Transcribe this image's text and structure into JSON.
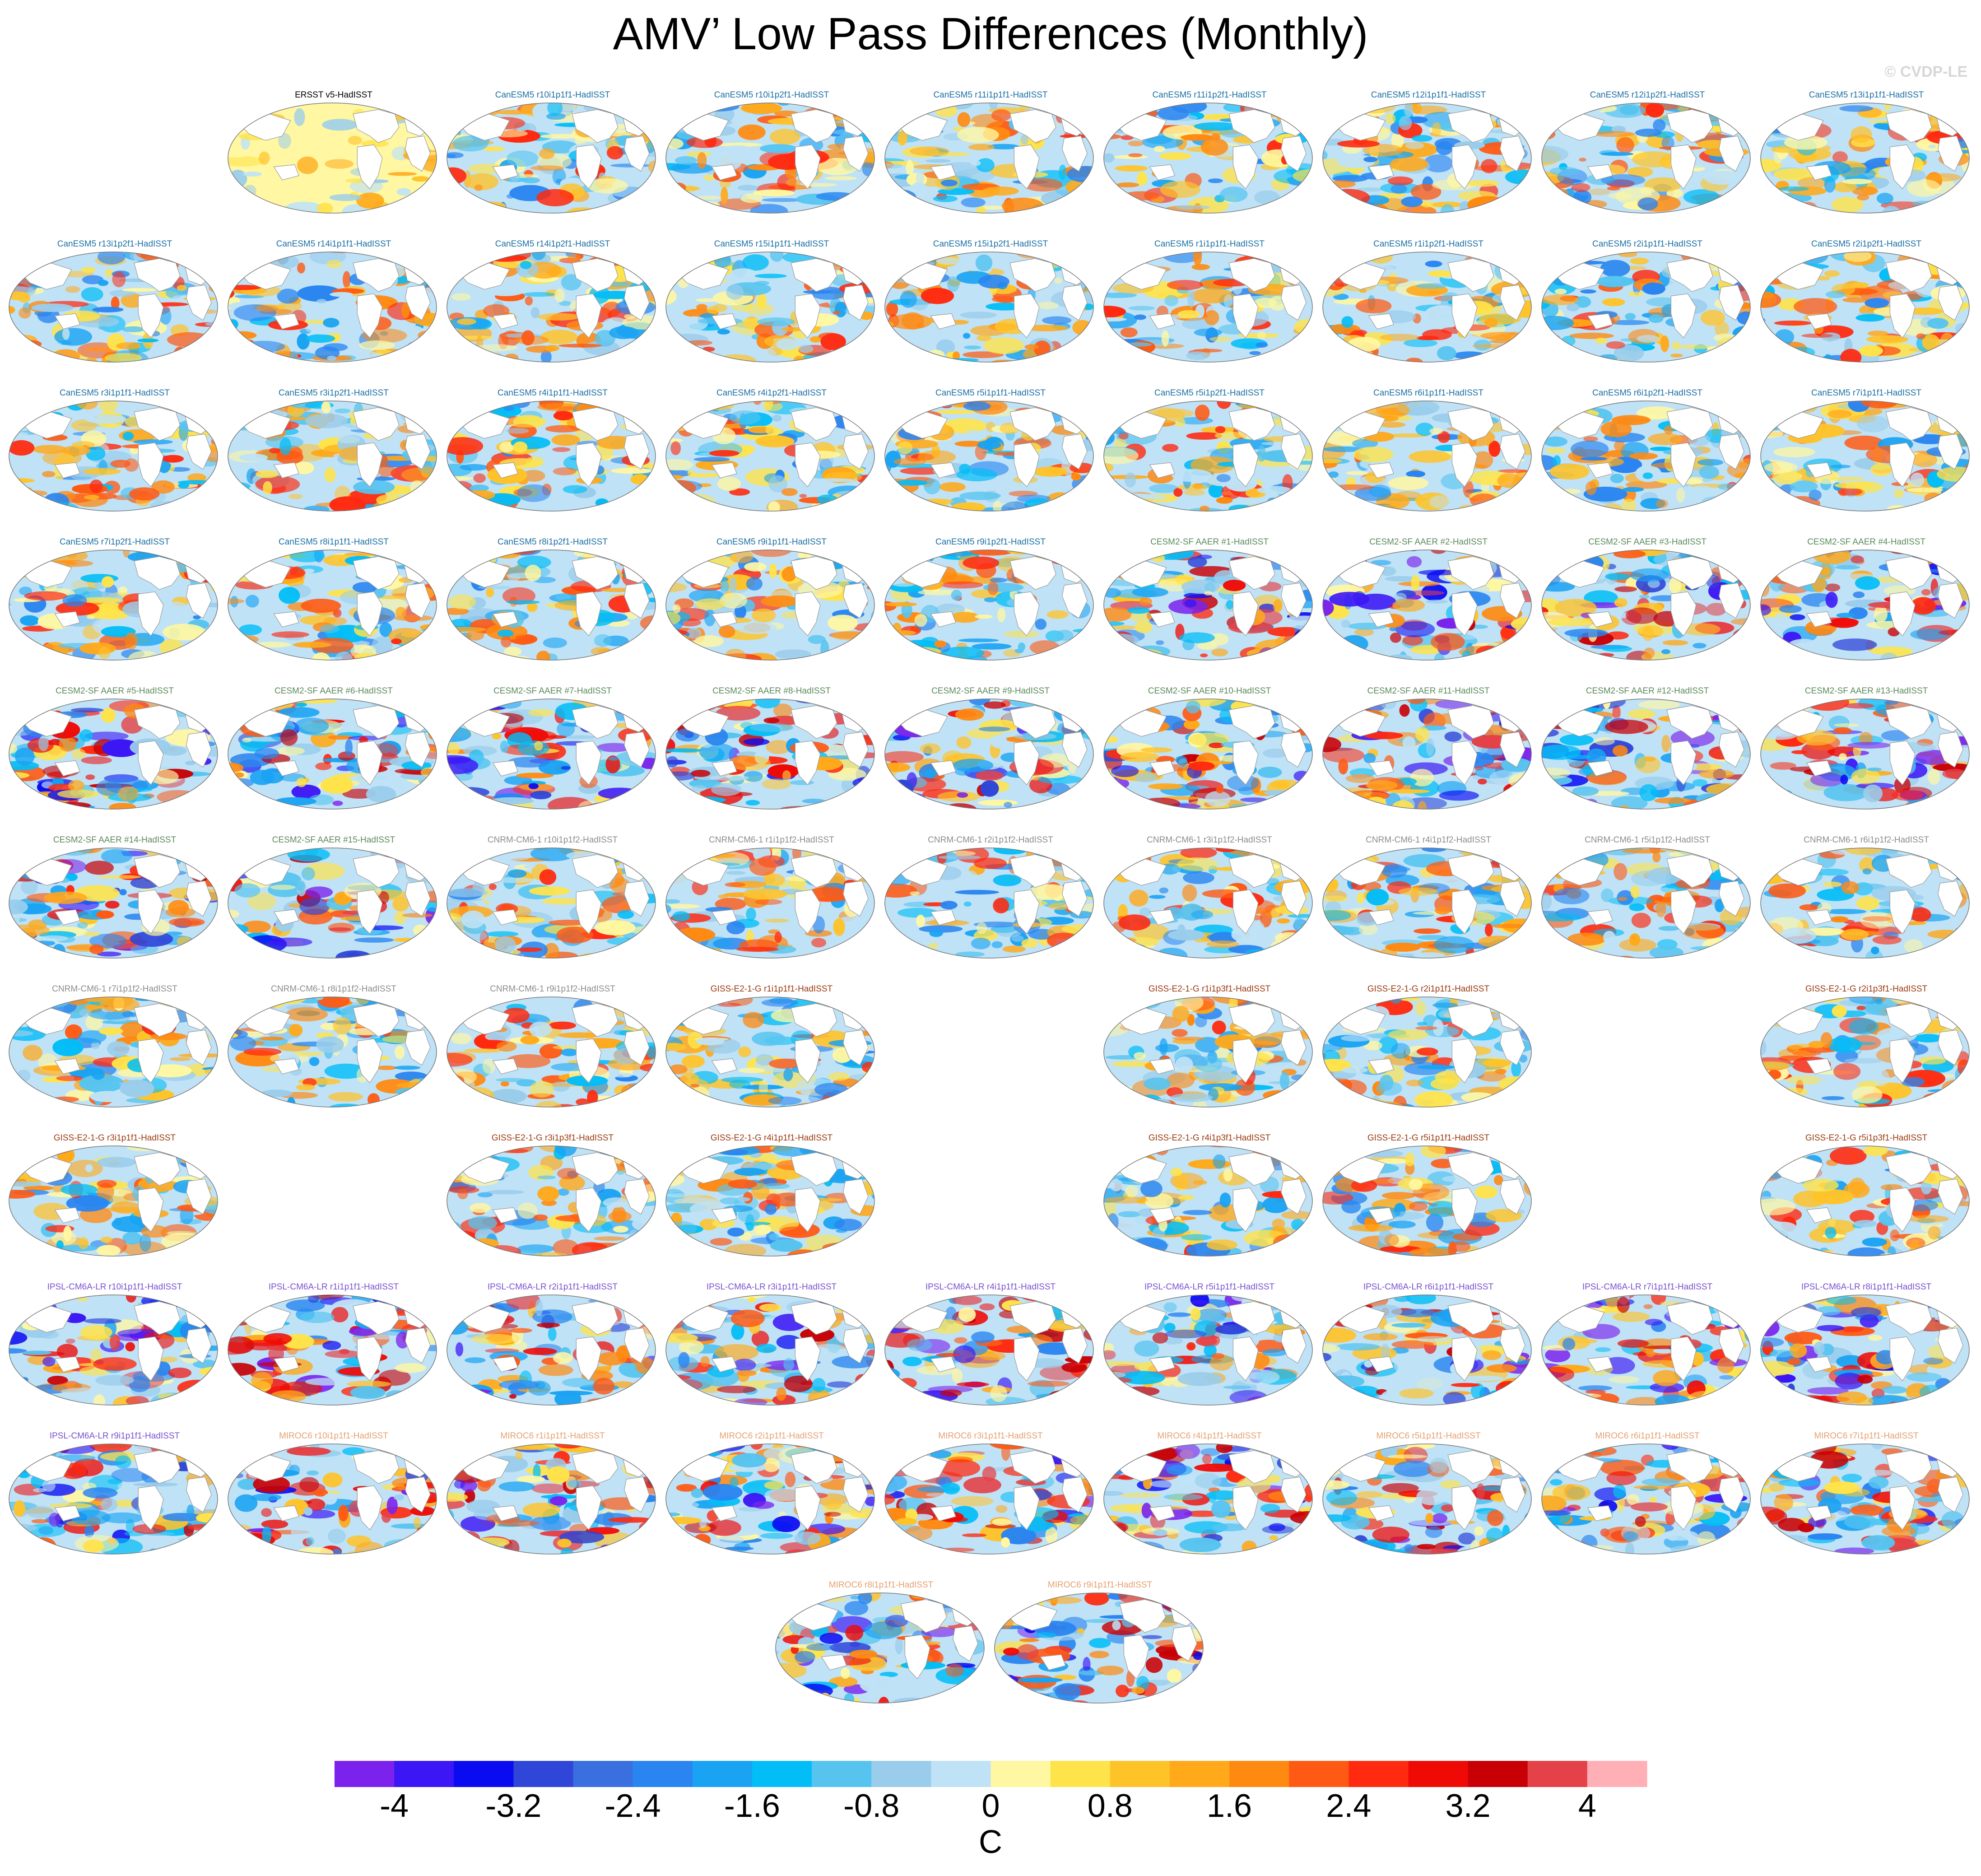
{
  "title": "AMV’ Low Pass Differences (Monthly)",
  "credit": "© CVDP-LE",
  "colorbar": {
    "unit": "C",
    "tick_labels": [
      "-4",
      "-3.2",
      "-2.4",
      "-1.6",
      "-0.8",
      "0",
      "0.8",
      "1.6",
      "2.4",
      "3.2",
      "4"
    ],
    "colors": [
      "#7b23ec",
      "#3c16f5",
      "#0b0bf2",
      "#2f46d8",
      "#3a6fe0",
      "#2a85f0",
      "#1aa3f3",
      "#03bdf7",
      "#57c4f0",
      "#9acdec",
      "#bfe2f6",
      "#fff7a2",
      "#ffe34a",
      "#ffc32a",
      "#ffa91b",
      "#ff8a12",
      "#ff5a14",
      "#ff2a10",
      "#f00a06",
      "#c80005",
      "#e44248",
      "#ffb0b6"
    ]
  },
  "group_colors": {
    "obs": "#000000",
    "CanESM5": "#1a6fa3",
    "CESM2-SF AAER": "#5a8a5a",
    "CNRM-CM6-1": "#8c8c8c",
    "GISS-E2-1-G": "#9b3a10",
    "IPSL-CM6A-LR": "#7a4fd0",
    "MIROC6": "#e6a070"
  },
  "panels": [
    {
      "row": 0,
      "col": 1,
      "title": "ERSST v5-HadISST",
      "group": "obs"
    },
    {
      "row": 0,
      "col": 2,
      "title": "CanESM5 r10i1p1f1-HadISST",
      "group": "CanESM5"
    },
    {
      "row": 0,
      "col": 3,
      "title": "CanESM5 r10i1p2f1-HadISST",
      "group": "CanESM5"
    },
    {
      "row": 0,
      "col": 4,
      "title": "CanESM5 r11i1p1f1-HadISST",
      "group": "CanESM5"
    },
    {
      "row": 0,
      "col": 5,
      "title": "CanESM5 r11i1p2f1-HadISST",
      "group": "CanESM5"
    },
    {
      "row": 0,
      "col": 6,
      "title": "CanESM5 r12i1p1f1-HadISST",
      "group": "CanESM5"
    },
    {
      "row": 0,
      "col": 7,
      "title": "CanESM5 r12i1p2f1-HadISST",
      "group": "CanESM5"
    },
    {
      "row": 0,
      "col": 8,
      "title": "CanESM5 r13i1p1f1-HadISST",
      "group": "CanESM5"
    },
    {
      "row": 1,
      "col": 0,
      "title": "CanESM5 r13i1p2f1-HadISST",
      "group": "CanESM5"
    },
    {
      "row": 1,
      "col": 1,
      "title": "CanESM5 r14i1p1f1-HadISST",
      "group": "CanESM5"
    },
    {
      "row": 1,
      "col": 2,
      "title": "CanESM5 r14i1p2f1-HadISST",
      "group": "CanESM5"
    },
    {
      "row": 1,
      "col": 3,
      "title": "CanESM5 r15i1p1f1-HadISST",
      "group": "CanESM5"
    },
    {
      "row": 1,
      "col": 4,
      "title": "CanESM5 r15i1p2f1-HadISST",
      "group": "CanESM5"
    },
    {
      "row": 1,
      "col": 5,
      "title": "CanESM5 r1i1p1f1-HadISST",
      "group": "CanESM5"
    },
    {
      "row": 1,
      "col": 6,
      "title": "CanESM5 r1i1p2f1-HadISST",
      "group": "CanESM5"
    },
    {
      "row": 1,
      "col": 7,
      "title": "CanESM5 r2i1p1f1-HadISST",
      "group": "CanESM5"
    },
    {
      "row": 1,
      "col": 8,
      "title": "CanESM5 r2i1p2f1-HadISST",
      "group": "CanESM5"
    },
    {
      "row": 2,
      "col": 0,
      "title": "CanESM5 r3i1p1f1-HadISST",
      "group": "CanESM5"
    },
    {
      "row": 2,
      "col": 1,
      "title": "CanESM5 r3i1p2f1-HadISST",
      "group": "CanESM5"
    },
    {
      "row": 2,
      "col": 2,
      "title": "CanESM5 r4i1p1f1-HadISST",
      "group": "CanESM5"
    },
    {
      "row": 2,
      "col": 3,
      "title": "CanESM5 r4i1p2f1-HadISST",
      "group": "CanESM5"
    },
    {
      "row": 2,
      "col": 4,
      "title": "CanESM5 r5i1p1f1-HadISST",
      "group": "CanESM5"
    },
    {
      "row": 2,
      "col": 5,
      "title": "CanESM5 r5i1p2f1-HadISST",
      "group": "CanESM5"
    },
    {
      "row": 2,
      "col": 6,
      "title": "CanESM5 r6i1p1f1-HadISST",
      "group": "CanESM5"
    },
    {
      "row": 2,
      "col": 7,
      "title": "CanESM5 r6i1p2f1-HadISST",
      "group": "CanESM5"
    },
    {
      "row": 2,
      "col": 8,
      "title": "CanESM5 r7i1p1f1-HadISST",
      "group": "CanESM5"
    },
    {
      "row": 3,
      "col": 0,
      "title": "CanESM5 r7i1p2f1-HadISST",
      "group": "CanESM5"
    },
    {
      "row": 3,
      "col": 1,
      "title": "CanESM5 r8i1p1f1-HadISST",
      "group": "CanESM5"
    },
    {
      "row": 3,
      "col": 2,
      "title": "CanESM5 r8i1p2f1-HadISST",
      "group": "CanESM5"
    },
    {
      "row": 3,
      "col": 3,
      "title": "CanESM5 r9i1p1f1-HadISST",
      "group": "CanESM5"
    },
    {
      "row": 3,
      "col": 4,
      "title": "CanESM5 r9i1p2f1-HadISST",
      "group": "CanESM5"
    },
    {
      "row": 3,
      "col": 5,
      "title": "CESM2-SF AAER #1-HadISST",
      "group": "CESM2-SF AAER"
    },
    {
      "row": 3,
      "col": 6,
      "title": "CESM2-SF AAER #2-HadISST",
      "group": "CESM2-SF AAER"
    },
    {
      "row": 3,
      "col": 7,
      "title": "CESM2-SF AAER #3-HadISST",
      "group": "CESM2-SF AAER"
    },
    {
      "row": 3,
      "col": 8,
      "title": "CESM2-SF AAER #4-HadISST",
      "group": "CESM2-SF AAER"
    },
    {
      "row": 4,
      "col": 0,
      "title": "CESM2-SF AAER #5-HadISST",
      "group": "CESM2-SF AAER"
    },
    {
      "row": 4,
      "col": 1,
      "title": "CESM2-SF AAER #6-HadISST",
      "group": "CESM2-SF AAER"
    },
    {
      "row": 4,
      "col": 2,
      "title": "CESM2-SF AAER #7-HadISST",
      "group": "CESM2-SF AAER"
    },
    {
      "row": 4,
      "col": 3,
      "title": "CESM2-SF AAER #8-HadISST",
      "group": "CESM2-SF AAER"
    },
    {
      "row": 4,
      "col": 4,
      "title": "CESM2-SF AAER #9-HadISST",
      "group": "CESM2-SF AAER"
    },
    {
      "row": 4,
      "col": 5,
      "title": "CESM2-SF AAER #10-HadISST",
      "group": "CESM2-SF AAER"
    },
    {
      "row": 4,
      "col": 6,
      "title": "CESM2-SF AAER #11-HadISST",
      "group": "CESM2-SF AAER"
    },
    {
      "row": 4,
      "col": 7,
      "title": "CESM2-SF AAER #12-HadISST",
      "group": "CESM2-SF AAER"
    },
    {
      "row": 4,
      "col": 8,
      "title": "CESM2-SF AAER #13-HadISST",
      "group": "CESM2-SF AAER"
    },
    {
      "row": 5,
      "col": 0,
      "title": "CESM2-SF AAER #14-HadISST",
      "group": "CESM2-SF AAER"
    },
    {
      "row": 5,
      "col": 1,
      "title": "CESM2-SF AAER #15-HadISST",
      "group": "CESM2-SF AAER"
    },
    {
      "row": 5,
      "col": 2,
      "title": "CNRM-CM6-1 r10i1p1f2-HadISST",
      "group": "CNRM-CM6-1"
    },
    {
      "row": 5,
      "col": 3,
      "title": "CNRM-CM6-1 r1i1p1f2-HadISST",
      "group": "CNRM-CM6-1"
    },
    {
      "row": 5,
      "col": 4,
      "title": "CNRM-CM6-1 r2i1p1f2-HadISST",
      "group": "CNRM-CM6-1"
    },
    {
      "row": 5,
      "col": 5,
      "title": "CNRM-CM6-1 r3i1p1f2-HadISST",
      "group": "CNRM-CM6-1"
    },
    {
      "row": 5,
      "col": 6,
      "title": "CNRM-CM6-1 r4i1p1f2-HadISST",
      "group": "CNRM-CM6-1"
    },
    {
      "row": 5,
      "col": 7,
      "title": "CNRM-CM6-1 r5i1p1f2-HadISST",
      "group": "CNRM-CM6-1"
    },
    {
      "row": 5,
      "col": 8,
      "title": "CNRM-CM6-1 r6i1p1f2-HadISST",
      "group": "CNRM-CM6-1"
    },
    {
      "row": 6,
      "col": 0,
      "title": "CNRM-CM6-1 r7i1p1f2-HadISST",
      "group": "CNRM-CM6-1"
    },
    {
      "row": 6,
      "col": 1,
      "title": "CNRM-CM6-1 r8i1p1f2-HadISST",
      "group": "CNRM-CM6-1"
    },
    {
      "row": 6,
      "col": 2,
      "title": "CNRM-CM6-1 r9i1p1f2-HadISST",
      "group": "CNRM-CM6-1"
    },
    {
      "row": 6,
      "col": 3,
      "title": "GISS-E2-1-G r1i1p1f1-HadISST",
      "group": "GISS-E2-1-G"
    },
    {
      "row": 6,
      "col": 5,
      "title": "GISS-E2-1-G r1i1p3f1-HadISST",
      "group": "GISS-E2-1-G"
    },
    {
      "row": 6,
      "col": 6,
      "title": "GISS-E2-1-G r2i1p1f1-HadISST",
      "group": "GISS-E2-1-G"
    },
    {
      "row": 6,
      "col": 8,
      "title": "GISS-E2-1-G r2i1p3f1-HadISST",
      "group": "GISS-E2-1-G"
    },
    {
      "row": 7,
      "col": 0,
      "title": "GISS-E2-1-G r3i1p1f1-HadISST",
      "group": "GISS-E2-1-G"
    },
    {
      "row": 7,
      "col": 2,
      "title": "GISS-E2-1-G r3i1p3f1-HadISST",
      "group": "GISS-E2-1-G"
    },
    {
      "row": 7,
      "col": 3,
      "title": "GISS-E2-1-G r4i1p1f1-HadISST",
      "group": "GISS-E2-1-G"
    },
    {
      "row": 7,
      "col": 5,
      "title": "GISS-E2-1-G r4i1p3f1-HadISST",
      "group": "GISS-E2-1-G"
    },
    {
      "row": 7,
      "col": 6,
      "title": "GISS-E2-1-G r5i1p1f1-HadISST",
      "group": "GISS-E2-1-G"
    },
    {
      "row": 7,
      "col": 8,
      "title": "GISS-E2-1-G r5i1p3f1-HadISST",
      "group": "GISS-E2-1-G"
    },
    {
      "row": 8,
      "col": 0,
      "title": "IPSL-CM6A-LR r10i1p1f1-HadISST",
      "group": "IPSL-CM6A-LR"
    },
    {
      "row": 8,
      "col": 1,
      "title": "IPSL-CM6A-LR r1i1p1f1-HadISST",
      "group": "IPSL-CM6A-LR"
    },
    {
      "row": 8,
      "col": 2,
      "title": "IPSL-CM6A-LR r2i1p1f1-HadISST",
      "group": "IPSL-CM6A-LR"
    },
    {
      "row": 8,
      "col": 3,
      "title": "IPSL-CM6A-LR r3i1p1f1-HadISST",
      "group": "IPSL-CM6A-LR"
    },
    {
      "row": 8,
      "col": 4,
      "title": "IPSL-CM6A-LR r4i1p1f1-HadISST",
      "group": "IPSL-CM6A-LR"
    },
    {
      "row": 8,
      "col": 5,
      "title": "IPSL-CM6A-LR r5i1p1f1-HadISST",
      "group": "IPSL-CM6A-LR"
    },
    {
      "row": 8,
      "col": 6,
      "title": "IPSL-CM6A-LR r6i1p1f1-HadISST",
      "group": "IPSL-CM6A-LR"
    },
    {
      "row": 8,
      "col": 7,
      "title": "IPSL-CM6A-LR r7i1p1f1-HadISST",
      "group": "IPSL-CM6A-LR"
    },
    {
      "row": 8,
      "col": 8,
      "title": "IPSL-CM6A-LR r8i1p1f1-HadISST",
      "group": "IPSL-CM6A-LR"
    },
    {
      "row": 9,
      "col": 0,
      "title": "IPSL-CM6A-LR r9i1p1f1-HadISST",
      "group": "IPSL-CM6A-LR"
    },
    {
      "row": 9,
      "col": 1,
      "title": "MIROC6 r10i1p1f1-HadISST",
      "group": "MIROC6"
    },
    {
      "row": 9,
      "col": 2,
      "title": "MIROC6 r1i1p1f1-HadISST",
      "group": "MIROC6"
    },
    {
      "row": 9,
      "col": 3,
      "title": "MIROC6 r2i1p1f1-HadISST",
      "group": "MIROC6"
    },
    {
      "row": 9,
      "col": 4,
      "title": "MIROC6 r3i1p1f1-HadISST",
      "group": "MIROC6"
    },
    {
      "row": 9,
      "col": 5,
      "title": "MIROC6 r4i1p1f1-HadISST",
      "group": "MIROC6"
    },
    {
      "row": 9,
      "col": 6,
      "title": "MIROC6 r5i1p1f1-HadISST",
      "group": "MIROC6"
    },
    {
      "row": 9,
      "col": 7,
      "title": "MIROC6 r6i1p1f1-HadISST",
      "group": "MIROC6"
    },
    {
      "row": 9,
      "col": 8,
      "title": "MIROC6 r7i1p1f1-HadISST",
      "group": "MIROC6"
    },
    {
      "row": 10,
      "col": 3.5,
      "title": "MIROC6 r8i1p1f1-HadISST",
      "group": "MIROC6"
    },
    {
      "row": 10,
      "col": 4.5,
      "title": "MIROC6 r9i1p1f1-HadISST",
      "group": "MIROC6"
    }
  ]
}
